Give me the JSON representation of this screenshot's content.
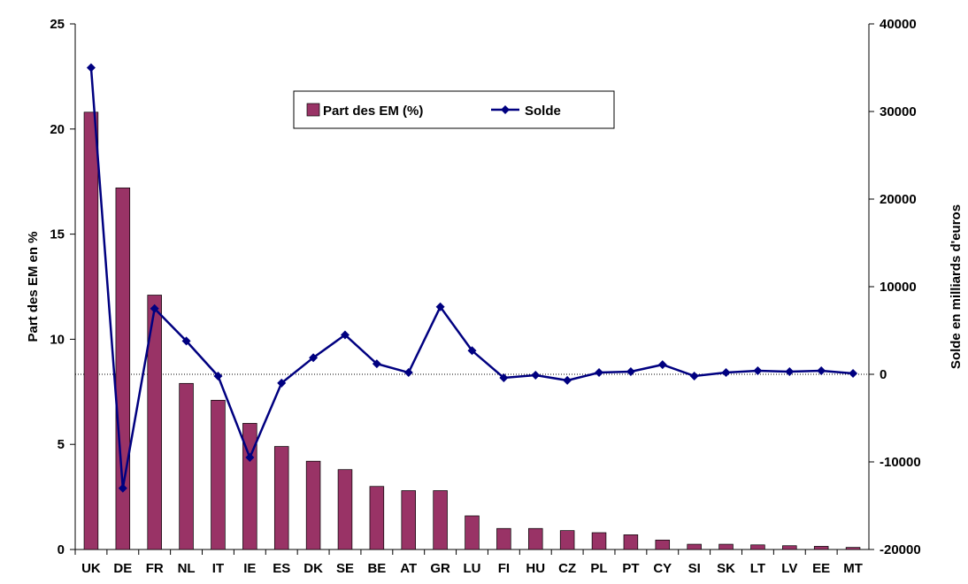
{
  "chart_data": {
    "type": "bar_line",
    "categories": [
      "UK",
      "DE",
      "FR",
      "NL",
      "IT",
      "IE",
      "ES",
      "DK",
      "SE",
      "BE",
      "AT",
      "GR",
      "LU",
      "FI",
      "HU",
      "CZ",
      "PL",
      "PT",
      "CY",
      "SI",
      "SK",
      "LT",
      "LV",
      "EE",
      "MT"
    ],
    "series": [
      {
        "name": "Part des EM (%)",
        "color": "#993366",
        "type": "bar",
        "values": [
          20.8,
          17.2,
          12.1,
          7.9,
          7.1,
          6.0,
          4.9,
          4.2,
          3.8,
          3.0,
          2.8,
          2.8,
          1.6,
          1.0,
          1.0,
          0.9,
          0.8,
          0.7,
          0.45,
          0.25,
          0.25,
          0.22,
          0.18,
          0.15,
          0.1
        ]
      },
      {
        "name": "Solde",
        "color": "#000080",
        "type": "line",
        "axis": "y2",
        "values": [
          35000,
          -13000,
          7500,
          3800,
          -200,
          -9500,
          -1000,
          1900,
          4500,
          1200,
          200,
          7700,
          2700,
          -400,
          -100,
          -700,
          200,
          300,
          1100,
          -200,
          200,
          400,
          300,
          400,
          100
        ]
      }
    ],
    "ylabel": "Part des EM en %",
    "y2label": "Solde en milliards d'euros",
    "ylim": [
      0,
      25
    ],
    "yticks": [
      0,
      5,
      10,
      15,
      20,
      25
    ],
    "y2lim": [
      -20000,
      40000
    ],
    "y2ticks": [
      -20000,
      -10000,
      0,
      10000,
      20000,
      30000,
      40000
    ]
  }
}
